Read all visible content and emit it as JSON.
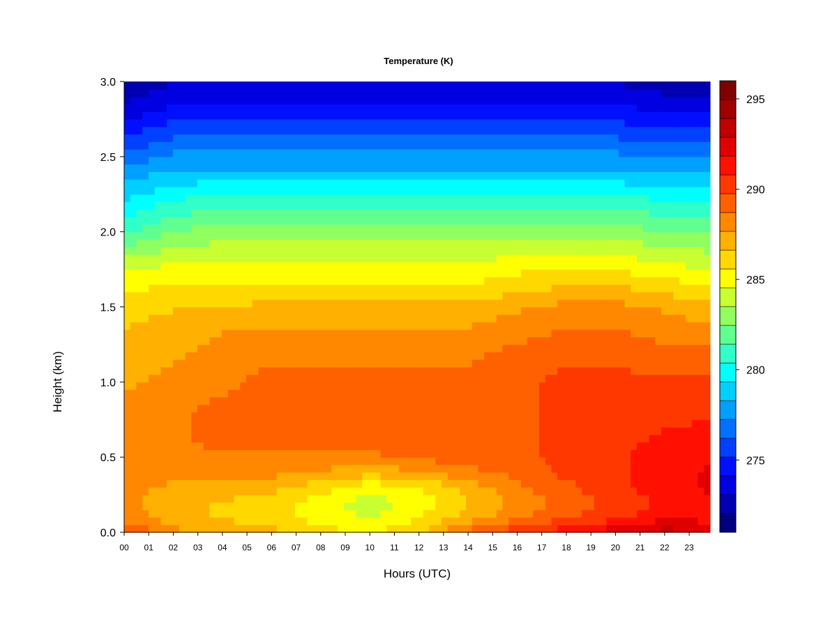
{
  "chart_data": {
    "type": "heatmap",
    "title": "Temperature (K)",
    "xlabel": "Hours (UTC)",
    "ylabel": "Height (km)",
    "x_ticks": [
      "00",
      "01",
      "02",
      "03",
      "04",
      "05",
      "06",
      "07",
      "08",
      "09",
      "10",
      "11",
      "12",
      "13",
      "14",
      "15",
      "16",
      "17",
      "18",
      "19",
      "20",
      "21",
      "22",
      "23"
    ],
    "y_ticks": [
      "0.0",
      "0.5",
      "1.0",
      "1.5",
      "2.0",
      "2.5",
      "3.0"
    ],
    "xlim": [
      0,
      23.85
    ],
    "ylim": [
      0,
      3.0
    ],
    "colorbar": {
      "ticks": [
        "275",
        "280",
        "285",
        "290",
        "295"
      ],
      "range": [
        271,
        296
      ],
      "colors": [
        "#000080",
        "#0000b0",
        "#0000e0",
        "#0010ff",
        "#0040ff",
        "#0070ff",
        "#00a0ff",
        "#00d0ff",
        "#00ffff",
        "#30ffc8",
        "#60ff90",
        "#90ff60",
        "#c8ff30",
        "#ffff00",
        "#ffd800",
        "#ffb000",
        "#ff8800",
        "#ff6000",
        "#ff3800",
        "#ff1000",
        "#e00000",
        "#c00000",
        "#a00000",
        "#800000"
      ]
    },
    "heights_km": [
      0.0,
      0.05,
      0.1,
      0.2,
      0.3,
      0.4,
      0.5,
      0.6,
      0.8,
      1.0,
      1.2,
      1.4,
      1.5,
      1.6,
      1.8,
      2.0,
      2.2,
      2.4,
      2.6,
      2.8,
      3.0
    ],
    "hours": [
      0,
      2,
      4,
      6,
      8,
      10,
      12,
      14,
      16,
      18,
      20,
      22,
      23.85
    ],
    "temperature_K": [
      [
        290.0,
        288.0,
        287.5,
        287.0,
        286.0,
        285.5,
        286.5,
        289.0,
        290.5,
        291.5,
        292.5,
        293.5,
        293.0
      ],
      [
        289.0,
        287.5,
        287.0,
        286.5,
        285.5,
        285.0,
        286.0,
        288.0,
        289.5,
        290.5,
        291.5,
        292.5,
        292.0
      ],
      [
        288.5,
        287.0,
        286.5,
        286.0,
        285.0,
        284.5,
        285.5,
        287.0,
        288.5,
        289.5,
        290.5,
        291.5,
        291.5
      ],
      [
        288.0,
        287.0,
        286.5,
        286.0,
        285.0,
        284.0,
        285.0,
        286.5,
        288.0,
        289.0,
        290.0,
        291.0,
        291.5
      ],
      [
        288.0,
        287.5,
        287.5,
        287.0,
        286.0,
        285.0,
        285.5,
        287.0,
        288.5,
        289.5,
        290.5,
        291.5,
        292.0
      ],
      [
        288.0,
        288.0,
        288.0,
        288.0,
        287.5,
        287.0,
        287.5,
        288.5,
        289.0,
        290.0,
        290.5,
        291.5,
        292.0
      ],
      [
        288.0,
        288.5,
        288.5,
        288.5,
        288.5,
        288.5,
        289.0,
        289.0,
        289.5,
        290.0,
        290.5,
        291.5,
        291.5
      ],
      [
        288.0,
        288.5,
        289.0,
        289.0,
        289.0,
        289.0,
        289.0,
        289.0,
        289.5,
        290.0,
        290.5,
        291.0,
        291.5
      ],
      [
        288.0,
        288.5,
        289.0,
        289.0,
        289.0,
        289.0,
        289.0,
        289.0,
        289.5,
        290.0,
        290.5,
        290.5,
        290.5
      ],
      [
        287.5,
        288.0,
        288.5,
        289.0,
        289.0,
        289.0,
        289.0,
        289.0,
        289.5,
        290.0,
        290.0,
        290.0,
        290.0
      ],
      [
        287.0,
        287.5,
        288.0,
        288.5,
        288.5,
        288.5,
        288.5,
        288.5,
        289.0,
        289.5,
        289.5,
        289.0,
        289.0
      ],
      [
        286.5,
        287.0,
        287.5,
        287.5,
        287.5,
        287.5,
        287.5,
        287.5,
        288.0,
        288.5,
        288.5,
        288.0,
        287.5
      ],
      [
        286.0,
        286.5,
        286.5,
        287.0,
        287.0,
        287.0,
        287.0,
        287.0,
        287.5,
        288.0,
        288.0,
        287.5,
        287.0
      ],
      [
        285.5,
        286.0,
        286.0,
        286.0,
        286.0,
        286.0,
        286.0,
        286.0,
        286.5,
        287.0,
        287.0,
        286.5,
        286.0
      ],
      [
        284.0,
        284.5,
        284.5,
        284.5,
        284.5,
        284.5,
        284.5,
        284.5,
        285.0,
        285.0,
        285.0,
        284.5,
        284.0
      ],
      [
        281.0,
        282.5,
        283.0,
        283.0,
        283.0,
        283.0,
        283.0,
        283.0,
        283.0,
        283.0,
        283.0,
        282.5,
        282.5
      ],
      [
        279.5,
        280.5,
        281.0,
        281.0,
        281.0,
        281.0,
        281.0,
        281.0,
        281.0,
        281.0,
        281.0,
        280.5,
        280.5
      ],
      [
        277.5,
        278.5,
        278.5,
        278.5,
        278.5,
        278.5,
        278.5,
        278.5,
        278.5,
        278.5,
        278.5,
        278.0,
        278.0
      ],
      [
        275.5,
        276.5,
        276.5,
        276.5,
        276.5,
        276.5,
        276.5,
        276.5,
        276.5,
        276.5,
        276.5,
        276.0,
        276.0
      ],
      [
        273.5,
        274.5,
        274.5,
        274.5,
        274.5,
        274.5,
        274.5,
        274.5,
        274.5,
        274.5,
        274.5,
        274.0,
        274.0
      ],
      [
        272.0,
        273.0,
        273.0,
        273.0,
        273.0,
        273.0,
        273.0,
        273.0,
        273.0,
        273.0,
        273.0,
        272.5,
        272.5
      ]
    ]
  }
}
